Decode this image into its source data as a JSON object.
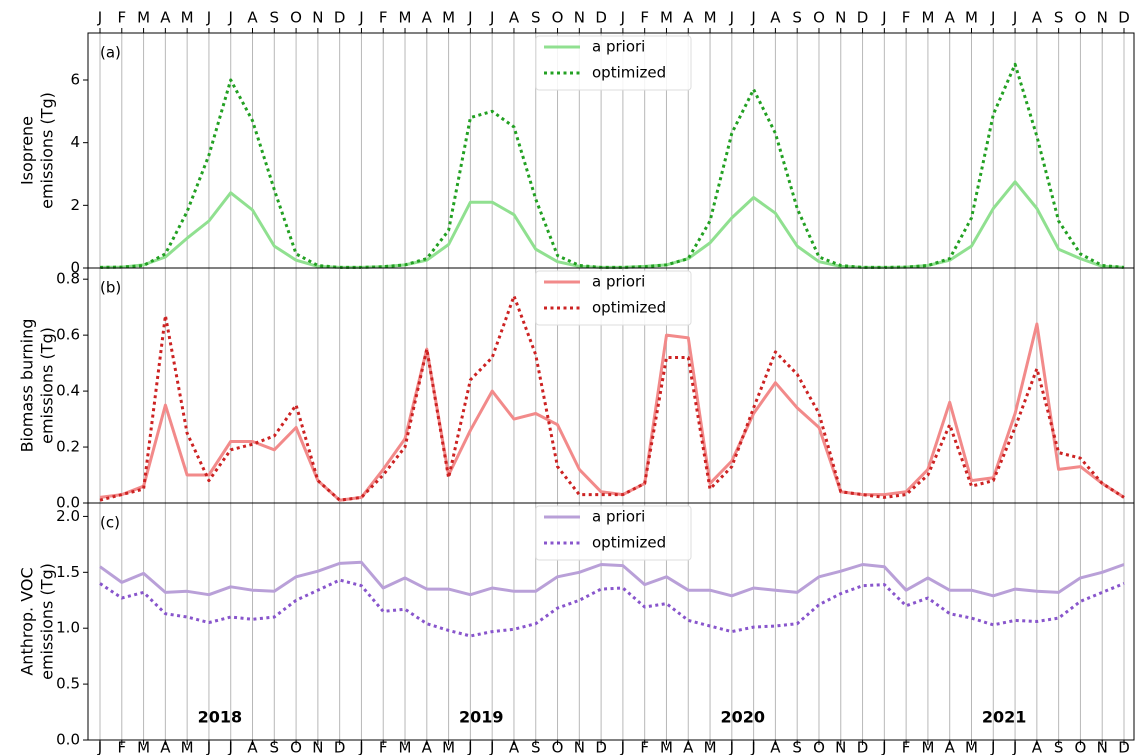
{
  "chart_data": [
    {
      "type": "line",
      "panel_label": "(a)",
      "ylabel": [
        "Isoprene",
        "emissions (Tg)"
      ],
      "grid": "x",
      "legend": "upper center",
      "categories": [
        "J",
        "F",
        "M",
        "A",
        "M",
        "J",
        "J",
        "A",
        "S",
        "O",
        "N",
        "D",
        "J",
        "F",
        "M",
        "A",
        "M",
        "J",
        "J",
        "A",
        "S",
        "O",
        "N",
        "D",
        "J",
        "F",
        "M",
        "A",
        "M",
        "J",
        "J",
        "A",
        "S",
        "O",
        "N",
        "D",
        "J",
        "F",
        "M",
        "A",
        "M",
        "J",
        "J",
        "A",
        "S",
        "O",
        "N",
        "D"
      ],
      "ylim": [
        0,
        7.5
      ],
      "yticks": [
        0,
        2,
        4,
        6
      ],
      "series": [
        {
          "name": "a priori",
          "color": "#90e090",
          "style": "solid",
          "values": [
            0.02,
            0.03,
            0.1,
            0.35,
            0.95,
            1.5,
            2.4,
            1.85,
            0.7,
            0.25,
            0.05,
            0.02,
            0.02,
            0.04,
            0.1,
            0.25,
            0.75,
            2.1,
            2.1,
            1.7,
            0.6,
            0.2,
            0.05,
            0.02,
            0.02,
            0.05,
            0.1,
            0.3,
            0.8,
            1.6,
            2.25,
            1.75,
            0.7,
            0.2,
            0.05,
            0.02,
            0.02,
            0.03,
            0.08,
            0.25,
            0.7,
            1.9,
            2.75,
            1.9,
            0.6,
            0.3,
            0.05,
            0.02
          ]
        },
        {
          "name": "optimized",
          "color": "#22a022",
          "style": "dotted",
          "values": [
            0.02,
            0.03,
            0.08,
            0.45,
            1.8,
            3.6,
            6.0,
            4.7,
            2.5,
            0.45,
            0.08,
            0.02,
            0.02,
            0.04,
            0.1,
            0.3,
            1.2,
            4.8,
            5.0,
            4.5,
            2.2,
            0.4,
            0.08,
            0.02,
            0.02,
            0.04,
            0.1,
            0.3,
            1.5,
            4.3,
            5.7,
            4.3,
            1.9,
            0.35,
            0.08,
            0.02,
            0.02,
            0.03,
            0.08,
            0.3,
            1.6,
            4.9,
            6.5,
            4.2,
            1.5,
            0.45,
            0.08,
            0.02
          ]
        }
      ]
    },
    {
      "type": "line",
      "panel_label": "(b)",
      "ylabel": [
        "Biomass burning",
        "emissions (Tg)"
      ],
      "grid": "x",
      "legend": "upper center",
      "categories": [
        "J",
        "F",
        "M",
        "A",
        "M",
        "J",
        "J",
        "A",
        "S",
        "O",
        "N",
        "D",
        "J",
        "F",
        "M",
        "A",
        "M",
        "J",
        "J",
        "A",
        "S",
        "O",
        "N",
        "D",
        "J",
        "F",
        "M",
        "A",
        "M",
        "J",
        "J",
        "A",
        "S",
        "O",
        "N",
        "D",
        "J",
        "F",
        "M",
        "A",
        "M",
        "J",
        "J",
        "A",
        "S",
        "O",
        "N",
        "D"
      ],
      "ylim": [
        0,
        0.84
      ],
      "yticks": [
        {
          "value": 0,
          "label": "0.0"
        },
        0.2,
        0.4,
        0.6,
        0.8
      ],
      "series": [
        {
          "name": "a priori",
          "color": "#f28a8a",
          "style": "solid",
          "values": [
            0.02,
            0.03,
            0.06,
            0.35,
            0.1,
            0.1,
            0.22,
            0.22,
            0.19,
            0.27,
            0.08,
            0.01,
            0.02,
            0.12,
            0.23,
            0.55,
            0.1,
            0.26,
            0.4,
            0.3,
            0.32,
            0.28,
            0.12,
            0.04,
            0.03,
            0.07,
            0.6,
            0.59,
            0.07,
            0.15,
            0.32,
            0.43,
            0.34,
            0.27,
            0.04,
            0.03,
            0.03,
            0.04,
            0.12,
            0.36,
            0.08,
            0.09,
            0.32,
            0.64,
            0.12,
            0.13,
            0.07,
            0.02
          ]
        },
        {
          "name": "optimized",
          "color": "#cc2222",
          "style": "dotted",
          "values": [
            0.01,
            0.03,
            0.05,
            0.67,
            0.25,
            0.08,
            0.19,
            0.21,
            0.24,
            0.35,
            0.08,
            0.01,
            0.02,
            0.1,
            0.2,
            0.55,
            0.09,
            0.44,
            0.52,
            0.74,
            0.53,
            0.13,
            0.03,
            0.03,
            0.03,
            0.07,
            0.52,
            0.52,
            0.05,
            0.13,
            0.34,
            0.54,
            0.46,
            0.32,
            0.04,
            0.03,
            0.02,
            0.03,
            0.1,
            0.28,
            0.06,
            0.08,
            0.27,
            0.48,
            0.18,
            0.16,
            0.07,
            0.02
          ]
        }
      ]
    },
    {
      "type": "line",
      "panel_label": "(c)",
      "ylabel": [
        "Anthrop. VOC",
        "emissions (Tg)"
      ],
      "grid": "x",
      "legend": "upper center",
      "categories": [
        "J",
        "F",
        "M",
        "A",
        "M",
        "J",
        "J",
        "A",
        "S",
        "O",
        "N",
        "D",
        "J",
        "F",
        "M",
        "A",
        "M",
        "J",
        "J",
        "A",
        "S",
        "O",
        "N",
        "D",
        "J",
        "F",
        "M",
        "A",
        "M",
        "J",
        "J",
        "A",
        "S",
        "O",
        "N",
        "D",
        "J",
        "F",
        "M",
        "A",
        "M",
        "J",
        "J",
        "A",
        "S",
        "O",
        "N",
        "D"
      ],
      "year_labels": [
        "2018",
        "2019",
        "2020",
        "2021"
      ],
      "ylim": [
        0,
        2.12
      ],
      "yticks": [
        {
          "value": 0,
          "label": "0.0"
        },
        0.5,
        {
          "value": 1,
          "label": "1.0"
        },
        1.5,
        {
          "value": 2,
          "label": "2.0"
        }
      ],
      "series": [
        {
          "name": "a priori",
          "color": "#b9a0d8",
          "style": "solid",
          "values": [
            1.55,
            1.41,
            1.49,
            1.32,
            1.33,
            1.3,
            1.37,
            1.34,
            1.33,
            1.46,
            1.51,
            1.58,
            1.59,
            1.36,
            1.45,
            1.35,
            1.35,
            1.3,
            1.36,
            1.33,
            1.33,
            1.46,
            1.5,
            1.57,
            1.56,
            1.39,
            1.46,
            1.34,
            1.34,
            1.29,
            1.36,
            1.34,
            1.32,
            1.46,
            1.51,
            1.57,
            1.55,
            1.34,
            1.45,
            1.34,
            1.34,
            1.29,
            1.35,
            1.33,
            1.32,
            1.45,
            1.5,
            1.57
          ]
        },
        {
          "name": "optimized",
          "color": "#8855cc",
          "style": "dotted",
          "values": [
            1.4,
            1.27,
            1.32,
            1.13,
            1.1,
            1.05,
            1.1,
            1.08,
            1.1,
            1.25,
            1.34,
            1.43,
            1.38,
            1.15,
            1.17,
            1.04,
            0.98,
            0.93,
            0.97,
            0.99,
            1.04,
            1.18,
            1.25,
            1.35,
            1.36,
            1.19,
            1.22,
            1.07,
            1.02,
            0.97,
            1.01,
            1.02,
            1.04,
            1.21,
            1.31,
            1.38,
            1.39,
            1.2,
            1.27,
            1.13,
            1.09,
            1.03,
            1.07,
            1.06,
            1.09,
            1.24,
            1.32,
            1.4
          ]
        }
      ]
    }
  ]
}
